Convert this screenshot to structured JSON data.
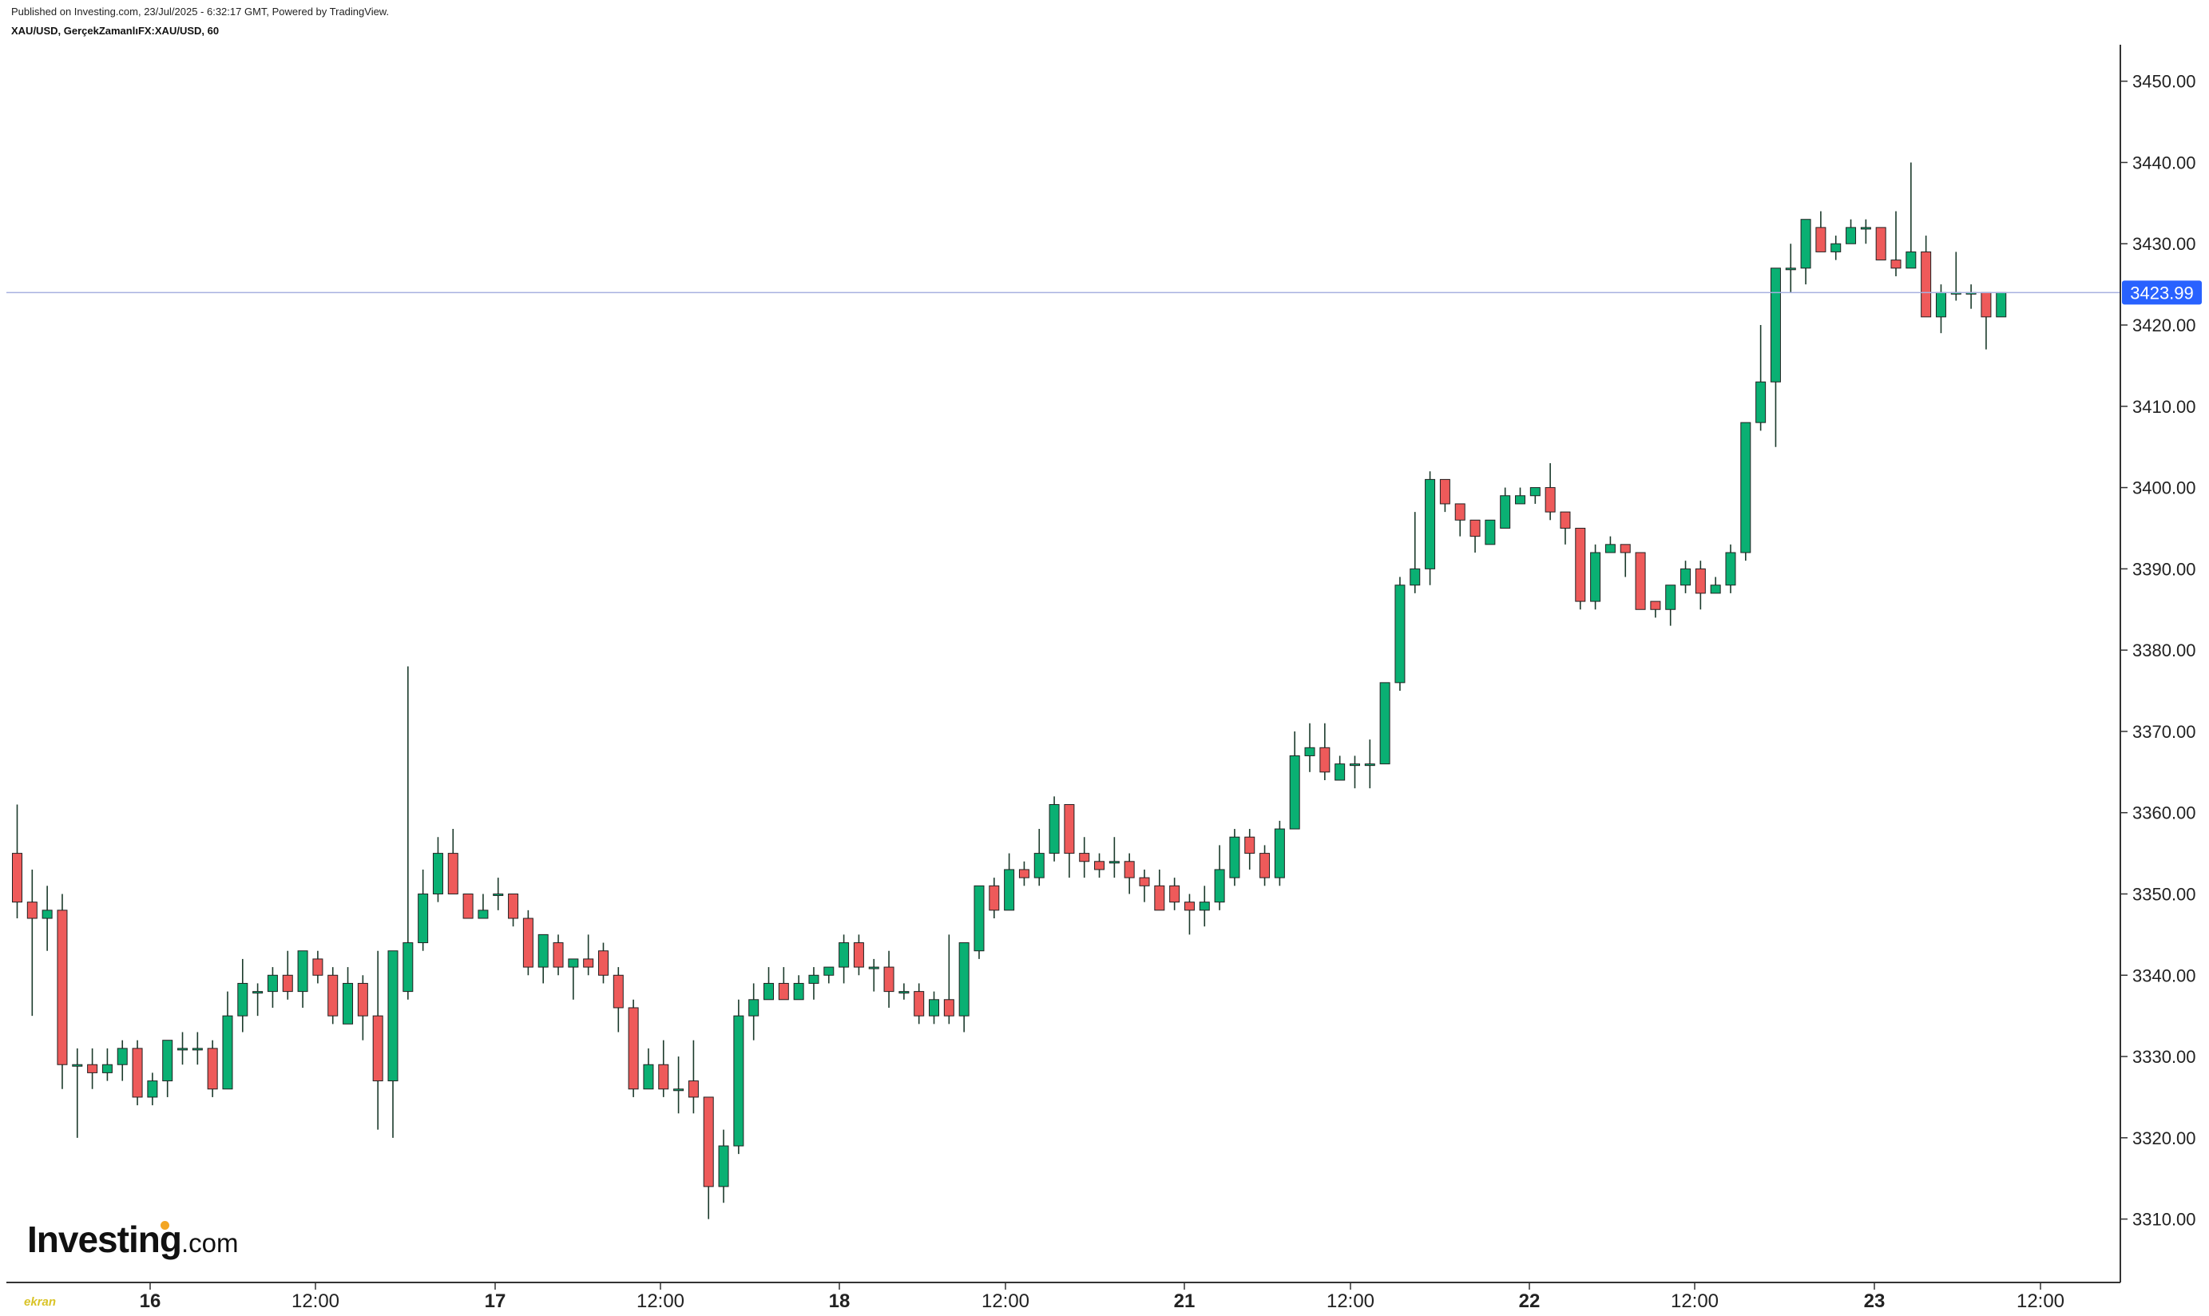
{
  "header": {
    "published": "Published on Investing.com, 23/Jul/2025 - 6:32:17 GMT, Powered by TradingView.",
    "symbol": "XAU/USD, GerçekZamanlıFX:XAU/USD, 60"
  },
  "logo": {
    "brand": "Investing",
    "suffix": ".com"
  },
  "watermark": {
    "text": "ekran"
  },
  "colors": {
    "up": "#0ab073",
    "down": "#ee5a5a",
    "wick": "#1b3a2b",
    "price_line": "#a7b0e0",
    "price_tag": "#2962ff",
    "axis": "#333333"
  },
  "chart_data": {
    "type": "candlestick",
    "interval": "60",
    "ylim": [
      3301,
      3455
    ],
    "y_ticks": [
      "3310.00",
      "3320.00",
      "3330.00",
      "3340.00",
      "3350.00",
      "3360.00",
      "3370.00",
      "3380.00",
      "3390.00",
      "3400.00",
      "3410.00",
      "3420.00",
      "3430.00",
      "3440.00",
      "3450.00"
    ],
    "x_ticks": [
      "16",
      "12:00",
      "17",
      "12:00",
      "18",
      "12:00",
      "21",
      "12:00",
      "22",
      "12:00",
      "23",
      "12:00"
    ],
    "current_price": "3423.99",
    "candles": [
      [
        3355,
        3361,
        3347,
        3349
      ],
      [
        3349,
        3353,
        3335,
        3347
      ],
      [
        3347,
        3351,
        3343,
        3348
      ],
      [
        3348,
        3350,
        3326,
        3329
      ],
      [
        3329,
        3331,
        3320,
        3329
      ],
      [
        3329,
        3331,
        3326,
        3328
      ],
      [
        3328,
        3331,
        3327,
        3329
      ],
      [
        3329,
        3332,
        3327,
        3331
      ],
      [
        3331,
        3332,
        3324,
        3325
      ],
      [
        3325,
        3328,
        3324,
        3327
      ],
      [
        3327,
        3332,
        3325,
        3332
      ],
      [
        3331,
        3333,
        3329,
        3331
      ],
      [
        3331,
        3333,
        3329,
        3331
      ],
      [
        3331,
        3332,
        3325,
        3326
      ],
      [
        3326,
        3338,
        3326,
        3335
      ],
      [
        3335,
        3342,
        3333,
        3339
      ],
      [
        3338,
        3339,
        3335,
        3338
      ],
      [
        3338,
        3341,
        3336,
        3340
      ],
      [
        3340,
        3343,
        3337,
        3338
      ],
      [
        3338,
        3343,
        3336,
        3343
      ],
      [
        3342,
        3343,
        3339,
        3340
      ],
      [
        3340,
        3341,
        3334,
        3335
      ],
      [
        3334,
        3341,
        3334,
        3339
      ],
      [
        3339,
        3340,
        3332,
        3335
      ],
      [
        3335,
        3343,
        3321,
        3327
      ],
      [
        3327,
        3343,
        3320,
        3343
      ],
      [
        3338,
        3378,
        3337,
        3344
      ],
      [
        3344,
        3353,
        3343,
        3350
      ],
      [
        3350,
        3357,
        3349,
        3355
      ],
      [
        3355,
        3358,
        3350,
        3350
      ],
      [
        3350,
        3350,
        3347,
        3347
      ],
      [
        3347,
        3350,
        3347,
        3348
      ],
      [
        3350,
        3352,
        3348,
        3350
      ],
      [
        3350,
        3350,
        3346,
        3347
      ],
      [
        3347,
        3348,
        3340,
        3341
      ],
      [
        3341,
        3344,
        3339,
        3345
      ],
      [
        3344,
        3345,
        3340,
        3341
      ],
      [
        3341,
        3342,
        3337,
        3342
      ],
      [
        3342,
        3345,
        3340,
        3341
      ],
      [
        3343,
        3344,
        3339,
        3340
      ],
      [
        3340,
        3341,
        3333,
        3336
      ],
      [
        3336,
        3337,
        3325,
        3326
      ],
      [
        3326,
        3331,
        3326,
        3329
      ],
      [
        3329,
        3332,
        3325,
        3326
      ],
      [
        3326,
        3330,
        3323,
        3326
      ],
      [
        3327,
        3332,
        3323,
        3325
      ],
      [
        3325,
        3325,
        3310,
        3314
      ],
      [
        3314,
        3321,
        3312,
        3319
      ],
      [
        3319,
        3337,
        3318,
        3335
      ],
      [
        3335,
        3339,
        3332,
        3337
      ],
      [
        3337,
        3341,
        3337,
        3339
      ],
      [
        3339,
        3341,
        3337,
        3337
      ],
      [
        3337,
        3340,
        3337,
        3339
      ],
      [
        3339,
        3341,
        3337,
        3340
      ],
      [
        3340,
        3341,
        3339,
        3341
      ],
      [
        3341,
        3345,
        3339,
        3344
      ],
      [
        3344,
        3345,
        3340,
        3341
      ],
      [
        3341,
        3342,
        3338,
        3341
      ],
      [
        3341,
        3343,
        3336,
        3338
      ],
      [
        3338,
        3339,
        3337,
        3338
      ],
      [
        3338,
        3339,
        3334,
        3335
      ],
      [
        3335,
        3338,
        3334,
        3337
      ],
      [
        3337,
        3345,
        3334,
        3335
      ],
      [
        3335,
        3344,
        3333,
        3344
      ],
      [
        3343,
        3351,
        3342,
        3351
      ],
      [
        3351,
        3352,
        3347,
        3348
      ],
      [
        3348,
        3355,
        3348,
        3353
      ],
      [
        3353,
        3354,
        3351,
        3352
      ],
      [
        3352,
        3358,
        3351,
        3355
      ],
      [
        3355,
        3362,
        3354,
        3361
      ],
      [
        3361,
        3361,
        3352,
        3355
      ],
      [
        3355,
        3357,
        3352,
        3354
      ],
      [
        3354,
        3355,
        3352,
        3353
      ],
      [
        3354,
        3357,
        3352,
        3354
      ],
      [
        3354,
        3355,
        3350,
        3352
      ],
      [
        3352,
        3353,
        3349,
        3351
      ],
      [
        3351,
        3353,
        3348,
        3348
      ],
      [
        3351,
        3352,
        3348,
        3349
      ],
      [
        3349,
        3350,
        3345,
        3348
      ],
      [
        3348,
        3351,
        3346,
        3349
      ],
      [
        3349,
        3356,
        3348,
        3353
      ],
      [
        3352,
        3358,
        3351,
        3357
      ],
      [
        3357,
        3358,
        3353,
        3355
      ],
      [
        3355,
        3356,
        3351,
        3352
      ],
      [
        3352,
        3359,
        3351,
        3358
      ],
      [
        3358,
        3370,
        3358,
        3367
      ],
      [
        3367,
        3371,
        3365,
        3368
      ],
      [
        3368,
        3371,
        3364,
        3365
      ],
      [
        3364,
        3367,
        3364,
        3366
      ],
      [
        3366,
        3367,
        3363,
        3366
      ],
      [
        3366,
        3369,
        3363,
        3366
      ],
      [
        3366,
        3376,
        3366,
        3376
      ],
      [
        3376,
        3389,
        3375,
        3388
      ],
      [
        3388,
        3397,
        3387,
        3390
      ],
      [
        3390,
        3402,
        3388,
        3401
      ],
      [
        3401,
        3401,
        3397,
        3398
      ],
      [
        3398,
        3398,
        3394,
        3396
      ],
      [
        3396,
        3396,
        3392,
        3394
      ],
      [
        3393,
        3396,
        3393,
        3396
      ],
      [
        3395,
        3400,
        3395,
        3399
      ],
      [
        3398,
        3400,
        3398,
        3399
      ],
      [
        3399,
        3400,
        3398,
        3400
      ],
      [
        3400,
        3403,
        3396,
        3397
      ],
      [
        3397,
        3397,
        3393,
        3395
      ],
      [
        3395,
        3395,
        3385,
        3386
      ],
      [
        3386,
        3393,
        3385,
        3392
      ],
      [
        3392,
        3394,
        3392,
        3393
      ],
      [
        3393,
        3393,
        3389,
        3392
      ],
      [
        3392,
        3392,
        3385,
        3385
      ],
      [
        3386,
        3386,
        3384,
        3385
      ],
      [
        3385,
        3388,
        3383,
        3388
      ],
      [
        3388,
        3391,
        3387,
        3390
      ],
      [
        3390,
        3391,
        3385,
        3387
      ],
      [
        3387,
        3389,
        3387,
        3388
      ],
      [
        3388,
        3393,
        3387,
        3392
      ],
      [
        3392,
        3408,
        3391,
        3408
      ],
      [
        3408,
        3420,
        3407,
        3413
      ],
      [
        3413,
        3427,
        3405,
        3427
      ],
      [
        3427,
        3430,
        3424,
        3427
      ],
      [
        3427,
        3433,
        3425,
        3433
      ],
      [
        3432,
        3434,
        3429,
        3429
      ],
      [
        3429,
        3431,
        3428,
        3430
      ],
      [
        3430,
        3433,
        3430,
        3432
      ],
      [
        3432,
        3433,
        3430,
        3432
      ],
      [
        3432,
        3432,
        3428,
        3428
      ],
      [
        3428,
        3434,
        3426,
        3427
      ],
      [
        3427,
        3440,
        3427,
        3429
      ],
      [
        3429,
        3431,
        3421,
        3421
      ],
      [
        3421,
        3425,
        3419,
        3424
      ],
      [
        3424,
        3429,
        3423,
        3424
      ],
      [
        3424,
        3425,
        3422,
        3424
      ],
      [
        3424,
        3424,
        3417,
        3421
      ],
      [
        3421,
        3424,
        3421,
        3424
      ]
    ]
  }
}
